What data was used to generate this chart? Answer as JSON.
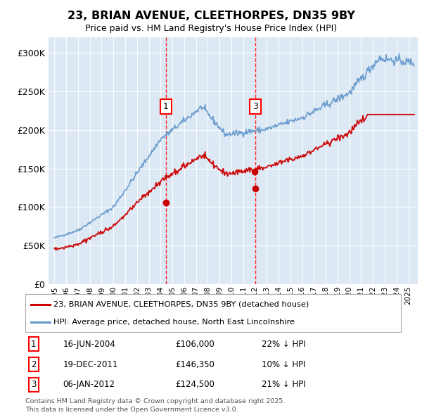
{
  "title": "23, BRIAN AVENUE, CLEETHORPES, DN35 9BY",
  "subtitle": "Price paid vs. HM Land Registry's House Price Index (HPI)",
  "legend_red": "23, BRIAN AVENUE, CLEETHORPES, DN35 9BY (detached house)",
  "legend_blue": "HPI: Average price, detached house, North East Lincolnshire",
  "transactions": [
    {
      "label": "1",
      "date": "16-JUN-2004",
      "price": 106000,
      "pct": "22%",
      "dir": "↓",
      "x_year": 2004.46
    },
    {
      "label": "2",
      "date": "19-DEC-2011",
      "price": 146350,
      "pct": "10%",
      "dir": "↓",
      "x_year": 2011.97
    },
    {
      "label": "3",
      "date": "06-JAN-2012",
      "price": 124500,
      "pct": "21%",
      "dir": "↓",
      "x_year": 2012.02
    }
  ],
  "footer1": "Contains HM Land Registry data © Crown copyright and database right 2025.",
  "footer2": "This data is licensed under the Open Government Licence v3.0.",
  "ylim": [
    0,
    320000
  ],
  "xlim_start": 1994.5,
  "xlim_end": 2025.8,
  "background_color": "#dce9f5",
  "red_color": "#cc0000",
  "blue_color": "#6699cc",
  "yticks": [
    0,
    50000,
    100000,
    150000,
    200000,
    250000,
    300000
  ],
  "ytick_labels": [
    "£0",
    "£50K",
    "£100K",
    "£150K",
    "£200K",
    "£250K",
    "£300K"
  ],
  "xticks": [
    1995,
    1996,
    1997,
    1998,
    1999,
    2000,
    2001,
    2002,
    2003,
    2004,
    2005,
    2006,
    2007,
    2008,
    2009,
    2010,
    2011,
    2012,
    2013,
    2014,
    2015,
    2016,
    2017,
    2018,
    2019,
    2020,
    2021,
    2022,
    2023,
    2024,
    2025
  ]
}
